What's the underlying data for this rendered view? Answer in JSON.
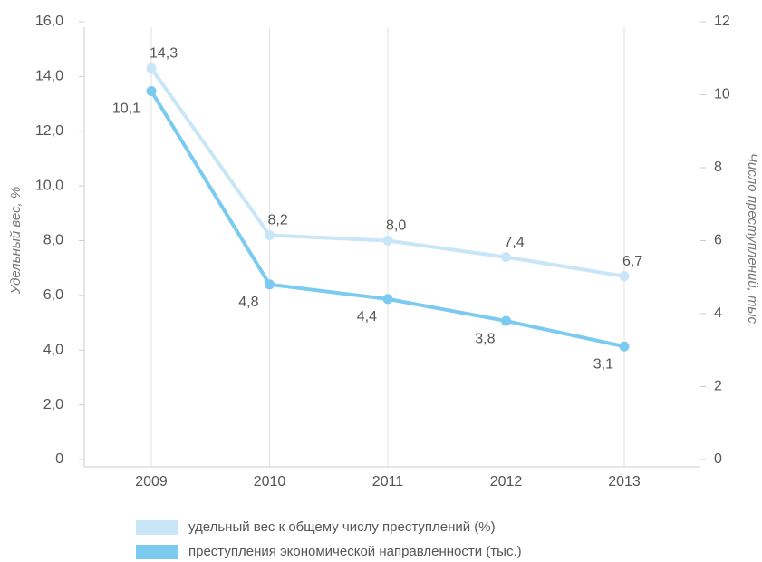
{
  "chart_data": {
    "type": "line",
    "categories": [
      "2009",
      "2010",
      "2011",
      "2012",
      "2013"
    ],
    "series": [
      {
        "name": "удельный вес к общему числу преступлений (%)",
        "color": "#c9e6f8",
        "axis": "y",
        "values": [
          14.3,
          8.2,
          8.0,
          7.4,
          6.7
        ],
        "value_labels": [
          "14,3",
          "8,2",
          "8,0",
          "7,4",
          "6,7"
        ]
      },
      {
        "name": "преступления экономической направленности (тыс.)",
        "color": "#7acbef",
        "axis": "y2",
        "values": [
          10.1,
          4.8,
          4.4,
          3.8,
          3.1
        ],
        "value_labels": [
          "10,1",
          "4,8",
          "4,4",
          "3,8",
          "3,1"
        ]
      }
    ],
    "ylabel": "Удельный вес, %",
    "y2label": "Число преступлений, тыс.",
    "ylim": [
      0,
      16
    ],
    "yticks": [
      0,
      {
        "value": 2,
        "label": "2,0"
      },
      {
        "value": 4,
        "label": "4,0"
      },
      {
        "value": 6,
        "label": "6,0"
      },
      {
        "value": 8,
        "label": "8,0"
      },
      {
        "value": 10,
        "label": "10,0"
      },
      {
        "value": 12,
        "label": "12,0"
      },
      {
        "value": 14,
        "label": "14,0"
      },
      {
        "value": 16,
        "label": "16,0"
      }
    ],
    "y2lim": [
      0,
      12
    ],
    "y2ticks": [
      0,
      2,
      4,
      6,
      8,
      10,
      12
    ],
    "grid": true,
    "legend": "bottom"
  }
}
